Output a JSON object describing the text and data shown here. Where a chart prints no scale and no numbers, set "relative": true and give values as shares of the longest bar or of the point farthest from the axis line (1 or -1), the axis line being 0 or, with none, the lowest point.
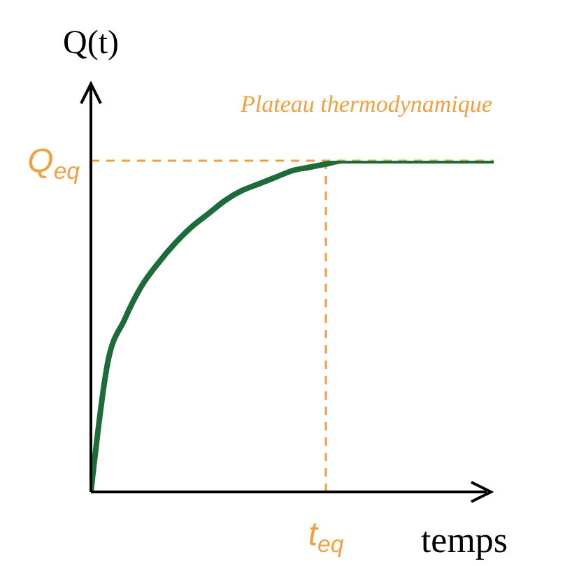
{
  "chart_data": {
    "type": "line",
    "relative": true,
    "ylabel": "Q(t)",
    "xlabel": "temps",
    "categories": [
      null,
      null,
      null,
      null,
      null,
      null,
      null,
      null,
      null,
      null,
      null,
      null,
      null,
      null,
      null,
      null,
      null,
      null,
      null,
      null,
      null,
      null,
      null,
      null,
      null
    ],
    "series": [
      {
        "color": "#1e6b3a",
        "values": [
          0,
          0.39,
          0.52,
          0.62,
          0.69,
          0.75,
          0.8,
          0.84,
          0.88,
          0.91,
          0.93,
          0.95,
          0.97,
          0.98,
          0.99,
          1,
          1,
          1,
          1,
          1,
          1,
          1,
          1,
          1,
          1
        ]
      }
    ],
    "ref_lines": [
      {
        "axis": "y",
        "value": 1,
        "label": "Q$_{eq}$",
        "color": "#f0a040",
        "line_style": "dashed"
      }
    ],
    "annotations": [
      "Plateau thermodynamique",
      "t$_{eq}$"
    ],
    "marker": "none",
    "line_style": "solid",
    "grid": false,
    "legend": false
  }
}
